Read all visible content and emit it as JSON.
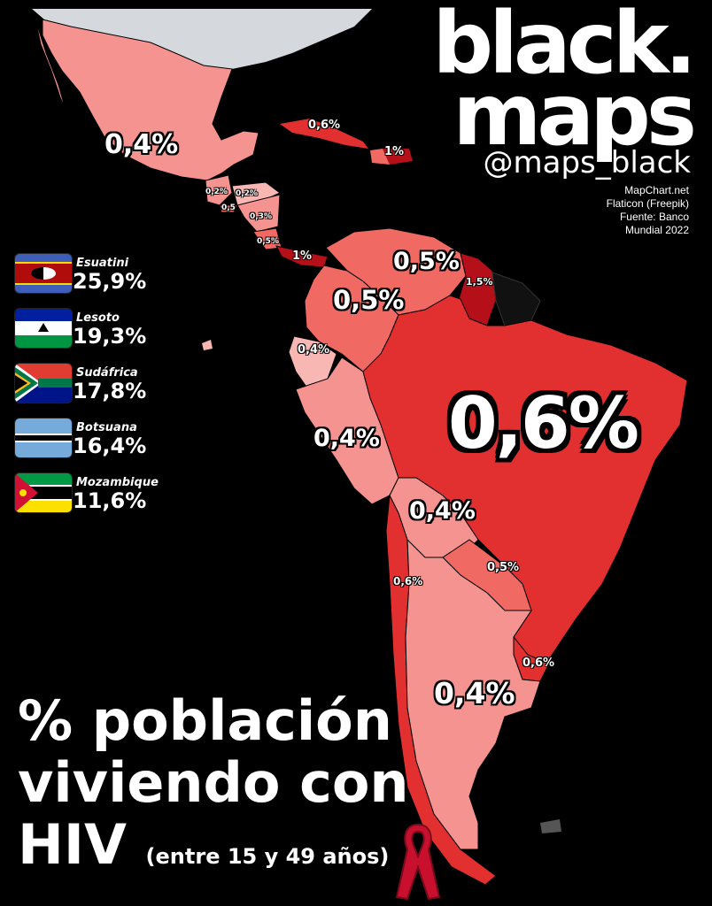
{
  "brand": {
    "line1": "black.",
    "line2": "maps",
    "handle": "@maps_black"
  },
  "credits": [
    "MapChart.net",
    "Flaticon (Freepik)",
    "Fuente: Banco",
    "Mundial 2022"
  ],
  "title": {
    "line1": "% población",
    "line2": "viviendo con",
    "line3": "HIV",
    "subtitle": "(entre 15 y 49 años)"
  },
  "legend": [
    {
      "country": "Esuatini",
      "value": "25,9%",
      "flag": "eswatini-flag-icon"
    },
    {
      "country": "Lesoto",
      "value": "19,3%",
      "flag": "lesotho-flag-icon"
    },
    {
      "country": "Sudáfrica",
      "value": "17,8%",
      "flag": "south-africa-flag-icon"
    },
    {
      "country": "Botsuana",
      "value": "16,4%",
      "flag": "botswana-flag-icon"
    },
    {
      "country": "Mozambique",
      "value": "11,6%",
      "flag": "mozambique-flag-icon"
    }
  ],
  "colors": {
    "background": "#000000",
    "low": "#f4938f",
    "mid": "#f06a63",
    "high": "#e23030",
    "veryhigh": "#b5101a",
    "usa": "#d5d9dd",
    "text": "#ffffff"
  },
  "map_values": {
    "mexico": "0,4%",
    "cuba": "0,6%",
    "dominican_republic": "1%",
    "guatemala": "0,2%",
    "honduras": "0,2%",
    "el_salvador": "0,5",
    "nicaragua": "0,3%",
    "costa_rica": "0,5%",
    "panama": "1%",
    "venezuela": "0,5%",
    "guyana_suriname": "1,5%",
    "colombia": "0,5%",
    "ecuador": "0,4%",
    "peru": "0,4%",
    "brazil": "0,6%",
    "bolivia": "0,4%",
    "chile": "0,6%",
    "paraguay": "0,5%",
    "uruguay": "0,6%",
    "argentina": "0,4%"
  }
}
